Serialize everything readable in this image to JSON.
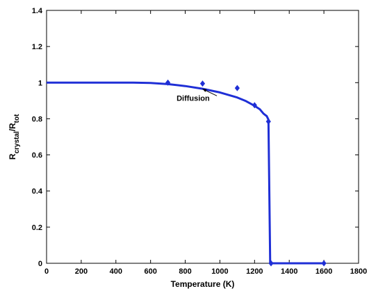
{
  "chart_data": {
    "type": "line",
    "xlabel": "Temperature (K)",
    "ylabel": {
      "base": "R",
      "sub1": "crystal",
      "mid": "/R",
      "sub2": "tot"
    },
    "xlim": [
      0,
      1800
    ],
    "ylim": [
      0,
      1.4
    ],
    "xticks": [
      "0",
      "200",
      "400",
      "600",
      "800",
      "1000",
      "1200",
      "1400",
      "1600",
      "1800"
    ],
    "yticks": [
      "0",
      "0.2",
      "0.4",
      "0.6",
      "0.8",
      "1",
      "1.2",
      "1.4"
    ],
    "grid": false,
    "series": [
      {
        "kind": "line",
        "color": "#1f2fd6",
        "x": [
          0,
          300,
          500,
          600,
          700,
          800,
          900,
          1000,
          1100,
          1150,
          1200,
          1230,
          1250,
          1260,
          1270,
          1280,
          1290,
          1300,
          1400,
          1500,
          1600
        ],
        "y": [
          1.0,
          1.0,
          1.0,
          0.998,
          0.992,
          0.981,
          0.966,
          0.946,
          0.918,
          0.898,
          0.872,
          0.853,
          0.83,
          0.822,
          0.815,
          0.795,
          0.0,
          0.0,
          0.0,
          0.0,
          0.0
        ]
      },
      {
        "kind": "markers",
        "marker": "diamond",
        "color": "#1f2fd6",
        "x": [
          700,
          900,
          1100,
          1200,
          1280,
          1295,
          1600
        ],
        "y": [
          1.0,
          0.995,
          0.97,
          0.875,
          0.785,
          0.0,
          0.0
        ]
      }
    ],
    "annotations": [
      {
        "text": "Diffusion",
        "x": 750,
        "y": 0.9,
        "arrow_to": [
          900,
          0.965
        ]
      }
    ]
  }
}
